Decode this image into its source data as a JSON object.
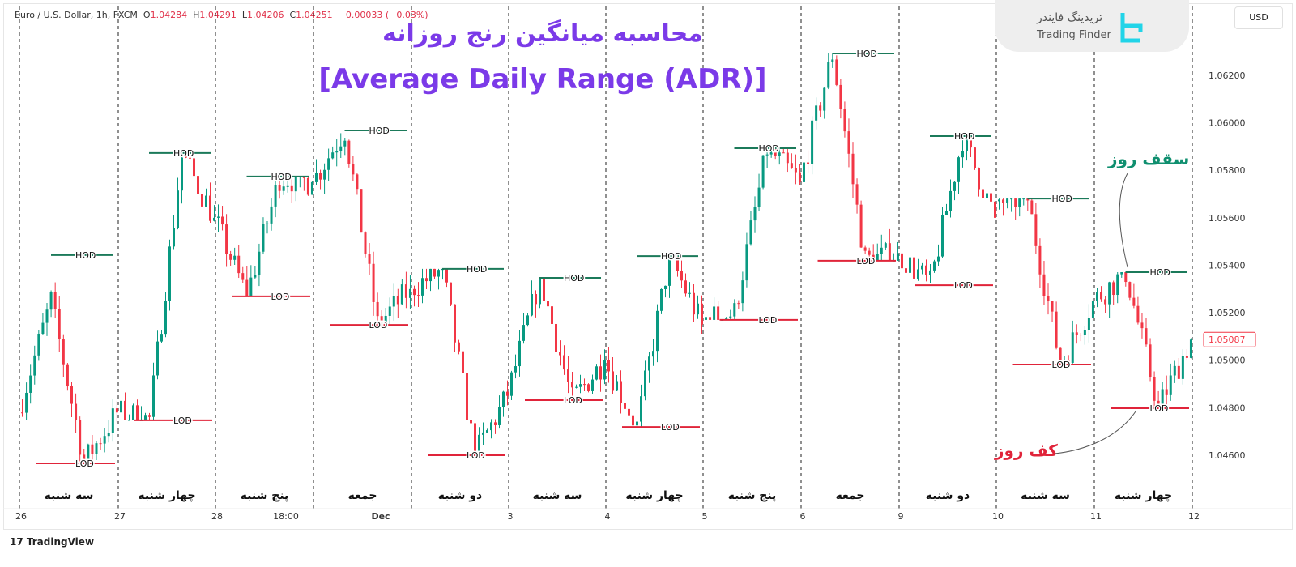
{
  "legend": {
    "symbol": "Euro / U.S. Dollar, 1h, FXCM",
    "o": "1.04284",
    "h": "1.04291",
    "l": "1.04206",
    "c": "1.04251",
    "chg": "−0.00033 (−0.03%)"
  },
  "title_fa": "محاسبه میانگین رنج روزانه",
  "title_en": "[Average Daily Range (ADR)]",
  "logo": {
    "fa": "تریدینگ فایندر",
    "en": "Trading Finder"
  },
  "currency_button": "USD",
  "branding": "TradingView",
  "annotations": {
    "high": "سقف روز",
    "low": "کف روز"
  },
  "colors": {
    "up": "#089981",
    "down": "#f23645",
    "title": "#7b3ae8",
    "hod": "#1b7a5a",
    "lod": "#e0243a"
  },
  "chart_data": {
    "type": "candlestick",
    "ylim": [
      1.0445,
      1.065
    ],
    "yticks": [
      "1.04600",
      "1.04800",
      "1.05000",
      "1.05200",
      "1.05400",
      "1.05600",
      "1.05800",
      "1.06000",
      "1.06200"
    ],
    "last_price": "1.05087",
    "xticks": [
      "26",
      "27",
      "28",
      "18:00",
      "Dec",
      "3",
      "4",
      "5",
      "6",
      "9",
      "10",
      "11",
      "12"
    ],
    "hod_label": "HOD",
    "lod_label": "LOD",
    "days": [
      {
        "label": "سه شنبه",
        "hod": 1.05443,
        "lod": 1.04566,
        "path": [
          1.0478,
          1.0525,
          1.0457,
          1.0478
        ]
      },
      {
        "label": "چهار شنبه",
        "hod": 1.05873,
        "lod": 1.04747,
        "path": [
          1.0478,
          1.0475,
          1.0587,
          1.056
        ]
      },
      {
        "label": "پنج شنبه",
        "hod": 1.05774,
        "lod": 1.05269,
        "path": [
          1.056,
          1.0527,
          1.0577,
          1.0575
        ]
      },
      {
        "label": "جمعه",
        "hod": 1.05968,
        "lod": 1.05149,
        "path": [
          1.0575,
          1.0597,
          1.0515,
          1.053
        ]
      },
      {
        "label": "دو شنبه",
        "hod": 1.05385,
        "lod": 1.046,
        "path": [
          1.053,
          1.0538,
          1.046,
          1.0485
        ]
      },
      {
        "label": "سه شنبه",
        "hod": 1.05347,
        "lod": 1.04832,
        "path": [
          1.0485,
          1.0535,
          1.0483,
          1.05
        ]
      },
      {
        "label": "چهار شنبه",
        "hod": 1.05439,
        "lod": 1.04719,
        "path": [
          1.05,
          1.0472,
          1.0544,
          1.0515
        ]
      },
      {
        "label": "پنج شنبه",
        "hod": 1.05893,
        "lod": 1.0517,
        "path": [
          1.0517,
          1.052,
          1.0589,
          1.0575
        ]
      },
      {
        "label": "جمعه",
        "hod": 1.06292,
        "lod": 1.05419,
        "path": [
          1.0575,
          1.0629,
          1.0542,
          1.0545
        ]
      },
      {
        "label": "دو شنبه",
        "hod": 1.05944,
        "lod": 1.05316,
        "path": [
          1.0545,
          1.0532,
          1.0594,
          1.056
        ]
      },
      {
        "label": "سه شنبه",
        "hod": 1.05681,
        "lod": 1.04982,
        "path": [
          1.0567,
          1.0568,
          1.0498,
          1.0525
        ]
      },
      {
        "label": "چهار شنبه",
        "hod": 1.05371,
        "lod": 1.04798,
        "path": [
          1.0525,
          1.0537,
          1.048,
          1.05087
        ]
      }
    ]
  }
}
